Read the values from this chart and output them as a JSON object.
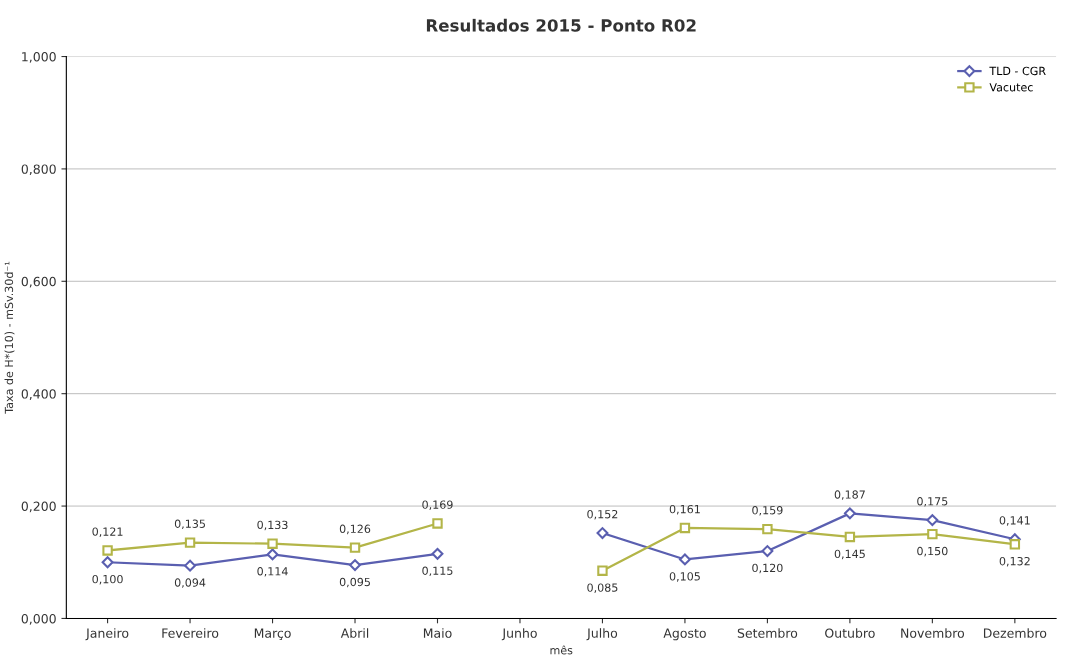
{
  "chart_data": {
    "type": "line",
    "title": "Resultados 2015 - Ponto R02",
    "xlabel": "mês",
    "ylabel": "Taxa de H*(10) - mSv.30d⁻¹",
    "categories": [
      "Janeiro",
      "Fevereiro",
      "Março",
      "Abril",
      "Maio",
      "Junho",
      "Julho",
      "Agosto",
      "Setembro",
      "Outubro",
      "Novembro",
      "Dezembro"
    ],
    "series": [
      {
        "name": "TLD - CGR",
        "color": "#5a5fb0",
        "marker": "diamond",
        "values": [
          0.1,
          0.094,
          0.114,
          0.095,
          0.115,
          null,
          0.152,
          0.105,
          0.12,
          0.187,
          0.175,
          0.141
        ],
        "value_labels": [
          "0,100",
          "0,094",
          "0,114",
          "0,095",
          "0,115",
          null,
          "0,152",
          "0,105",
          "0,120",
          "0,187",
          "0,175",
          "0,141"
        ]
      },
      {
        "name": "Vacutec",
        "color": "#b3b548",
        "marker": "square",
        "values": [
          0.121,
          0.135,
          0.133,
          0.126,
          0.169,
          null,
          0.085,
          0.161,
          0.159,
          0.145,
          0.15,
          0.132
        ],
        "value_labels": [
          "0,121",
          "0,135",
          "0,133",
          "0,126",
          "0,169",
          null,
          "0,085",
          "0,161",
          "0,159",
          "0,145",
          "0,150",
          "0,132"
        ]
      }
    ],
    "ylim": [
      0,
      1
    ],
    "yticks": [
      {
        "value": 0,
        "label": "0,000"
      },
      {
        "value": 0.2,
        "label": "0,200"
      },
      {
        "value": 0.4,
        "label": "0,400"
      },
      {
        "value": 0.6,
        "label": "0,600"
      },
      {
        "value": 0.8,
        "label": "0,800"
      },
      {
        "value": 1.0,
        "label": "1,000"
      }
    ],
    "grid": "y",
    "legend": "top right",
    "line_style": "solid"
  }
}
